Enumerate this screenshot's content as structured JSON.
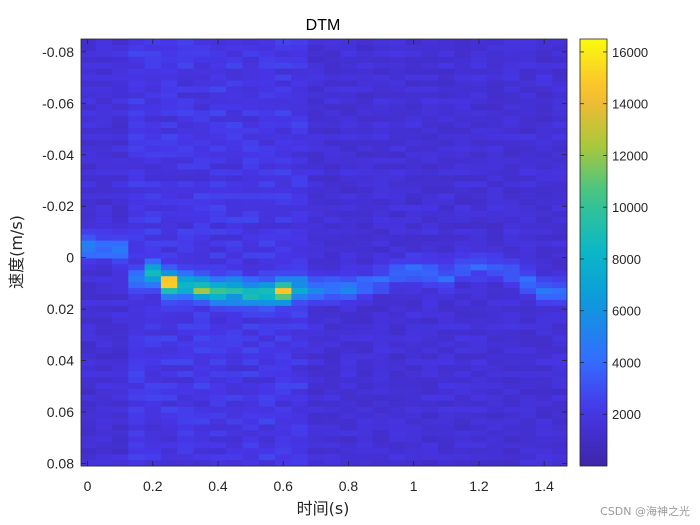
{
  "chart_data": {
    "type": "heatmap",
    "title": "DTM",
    "xlabel": "时间(s)",
    "ylabel": "速度(m/s)",
    "xlim": [
      -0.02,
      1.47
    ],
    "ylim": [
      -0.085,
      0.081
    ],
    "y_reversed": true,
    "xticks": [
      0,
      0.2,
      0.4,
      0.6,
      0.8,
      1,
      1.2,
      1.4
    ],
    "xtick_labels": [
      "0",
      "0.2",
      "0.4",
      "0.6",
      "0.8",
      "1",
      "1.2",
      "1.4"
    ],
    "yticks": [
      -0.08,
      -0.06,
      -0.04,
      -0.02,
      0,
      0.02,
      0.04,
      0.06,
      0.08
    ],
    "ytick_labels": [
      "-0.08",
      "-0.06",
      "-0.04",
      "-0.02",
      "0",
      "0.02",
      "0.04",
      "0.06",
      "0.08"
    ],
    "colorbar": {
      "colormap": "parula",
      "clim": [
        0,
        16500
      ],
      "ticks": [
        2000,
        4000,
        6000,
        8000,
        10000,
        12000,
        14000,
        16000
      ],
      "tick_labels": [
        "2000",
        "4000",
        "6000",
        "8000",
        "10000",
        "12000",
        "14000",
        "16000"
      ]
    },
    "time_bins": [
      0,
      0.05,
      0.1,
      0.15,
      0.2,
      0.25,
      0.3,
      0.35,
      0.4,
      0.45,
      0.5,
      0.55,
      0.6,
      0.65,
      0.7,
      0.75,
      0.8,
      0.85,
      0.9,
      0.95,
      1.0,
      1.05,
      1.1,
      1.15,
      1.2,
      1.25,
      1.3,
      1.35,
      1.4,
      1.45
    ],
    "ridge_velocity": [
      -0.004,
      -0.004,
      -0.003,
      0.009,
      0.006,
      0.01,
      0.011,
      0.012,
      0.013,
      0.013,
      0.014,
      0.014,
      0.013,
      0.012,
      0.013,
      0.012,
      0.012,
      0.011,
      0.009,
      0.006,
      0.005,
      0.006,
      0.007,
      0.004,
      0.003,
      0.004,
      0.006,
      0.01,
      0.013,
      0.014
    ],
    "peak_values": [
      5200,
      5200,
      4800,
      4500,
      8500,
      15500,
      9000,
      11500,
      10000,
      9500,
      9000,
      9000,
      14500,
      7000,
      5500,
      5000,
      5000,
      4500,
      4000,
      4000,
      4200,
      4000,
      3800,
      3500,
      4000,
      3500,
      3500,
      4000,
      4500,
      4000
    ],
    "background_level": 1400
  },
  "watermark": "CSDN @海神之光"
}
